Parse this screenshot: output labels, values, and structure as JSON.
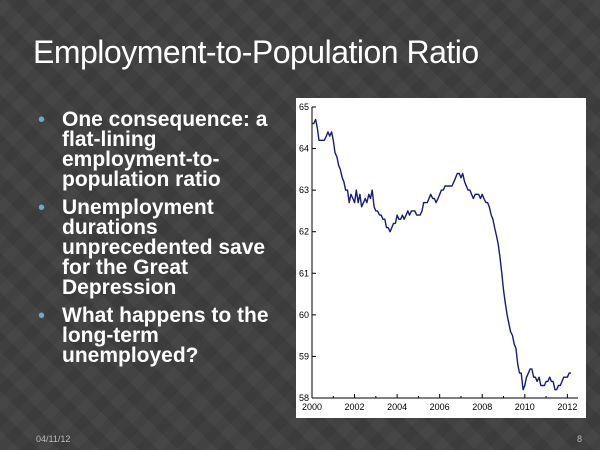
{
  "slide": {
    "title": "Employment-to-Population Ratio",
    "bullets": [
      "One consequence: a flat-lining employment-to-population ratio",
      "Unemployment durations unprecedented save for the Great Depression",
      "What happens to the long-term unemployed?"
    ],
    "footer_date": "04/11/12",
    "page_number": "8"
  },
  "colors": {
    "background": "#3f3f3f",
    "bullet_marker": "#6fa8c8",
    "series_line": "#1a1a7a"
  },
  "chart_data": {
    "type": "line",
    "title": "",
    "xlabel": "",
    "ylabel": "",
    "xlim": [
      2000,
      2012.5
    ],
    "ylim": [
      58,
      65
    ],
    "x_ticks": [
      "2000",
      "2002",
      "2004",
      "2006",
      "2008",
      "2010",
      "2012"
    ],
    "y_ticks": [
      "58",
      "59",
      "60",
      "61",
      "62",
      "63",
      "64",
      "65"
    ],
    "grid": false,
    "series": [
      {
        "name": "",
        "x": [
          2000.0,
          2000.08,
          2000.17,
          2000.25,
          2000.33,
          2000.42,
          2000.5,
          2000.58,
          2000.67,
          2000.75,
          2000.83,
          2000.92,
          2001.0,
          2001.08,
          2001.17,
          2001.25,
          2001.33,
          2001.42,
          2001.5,
          2001.58,
          2001.67,
          2001.75,
          2001.83,
          2001.92,
          2002.0,
          2002.08,
          2002.17,
          2002.25,
          2002.33,
          2002.42,
          2002.5,
          2002.58,
          2002.67,
          2002.75,
          2002.83,
          2002.92,
          2003.0,
          2003.08,
          2003.17,
          2003.25,
          2003.33,
          2003.42,
          2003.5,
          2003.58,
          2003.67,
          2003.75,
          2003.83,
          2003.92,
          2004.0,
          2004.08,
          2004.17,
          2004.25,
          2004.33,
          2004.42,
          2004.5,
          2004.58,
          2004.67,
          2004.75,
          2004.83,
          2004.92,
          2005.0,
          2005.08,
          2005.17,
          2005.25,
          2005.33,
          2005.42,
          2005.5,
          2005.58,
          2005.67,
          2005.75,
          2005.83,
          2005.92,
          2006.0,
          2006.08,
          2006.17,
          2006.25,
          2006.33,
          2006.42,
          2006.5,
          2006.58,
          2006.67,
          2006.75,
          2006.83,
          2006.92,
          2007.0,
          2007.08,
          2007.17,
          2007.25,
          2007.33,
          2007.42,
          2007.5,
          2007.58,
          2007.67,
          2007.75,
          2007.83,
          2007.92,
          2008.0,
          2008.08,
          2008.17,
          2008.25,
          2008.33,
          2008.42,
          2008.5,
          2008.58,
          2008.67,
          2008.75,
          2008.83,
          2008.92,
          2009.0,
          2009.08,
          2009.17,
          2009.25,
          2009.33,
          2009.42,
          2009.5,
          2009.58,
          2009.67,
          2009.75,
          2009.83,
          2009.92,
          2010.0,
          2010.08,
          2010.17,
          2010.25,
          2010.33,
          2010.42,
          2010.5,
          2010.58,
          2010.67,
          2010.75,
          2010.83,
          2010.92,
          2011.0,
          2011.08,
          2011.17,
          2011.25,
          2011.33,
          2011.42,
          2011.5,
          2011.58,
          2011.67,
          2011.75,
          2011.83,
          2011.92,
          2012.0,
          2012.08,
          2012.17
        ],
        "y": [
          64.6,
          64.6,
          64.7,
          64.5,
          64.2,
          64.2,
          64.2,
          64.2,
          64.3,
          64.4,
          64.3,
          64.4,
          64.2,
          63.9,
          63.8,
          63.6,
          63.5,
          63.3,
          63.2,
          63.0,
          63.0,
          62.7,
          62.9,
          62.8,
          62.7,
          63.0,
          62.7,
          62.9,
          62.6,
          62.7,
          62.8,
          62.7,
          62.9,
          62.8,
          63.0,
          62.6,
          62.5,
          62.5,
          62.4,
          62.4,
          62.3,
          62.3,
          62.1,
          62.1,
          62.0,
          62.1,
          62.2,
          62.2,
          62.4,
          62.3,
          62.3,
          62.4,
          62.3,
          62.4,
          62.5,
          62.4,
          62.5,
          62.5,
          62.5,
          62.4,
          62.4,
          62.4,
          62.5,
          62.7,
          62.7,
          62.7,
          62.8,
          62.9,
          62.8,
          62.8,
          62.7,
          62.8,
          62.9,
          63.0,
          63.0,
          63.1,
          63.1,
          63.1,
          63.1,
          63.1,
          63.2,
          63.3,
          63.4,
          63.4,
          63.3,
          63.4,
          63.2,
          63.1,
          63.0,
          63.0,
          62.9,
          62.8,
          62.9,
          62.9,
          62.9,
          62.8,
          62.9,
          62.8,
          62.7,
          62.7,
          62.6,
          62.4,
          62.3,
          62.1,
          61.9,
          61.7,
          61.4,
          61.0,
          60.6,
          60.3,
          60.0,
          59.8,
          59.6,
          59.5,
          59.3,
          59.2,
          58.8,
          58.6,
          58.6,
          58.2,
          58.3,
          58.5,
          58.6,
          58.7,
          58.7,
          58.5,
          58.5,
          58.4,
          58.5,
          58.3,
          58.3,
          58.3,
          58.4,
          58.4,
          58.5,
          58.4,
          58.4,
          58.2,
          58.2,
          58.3,
          58.3,
          58.4,
          58.5,
          58.5,
          58.5,
          58.6,
          58.6
        ]
      }
    ]
  }
}
